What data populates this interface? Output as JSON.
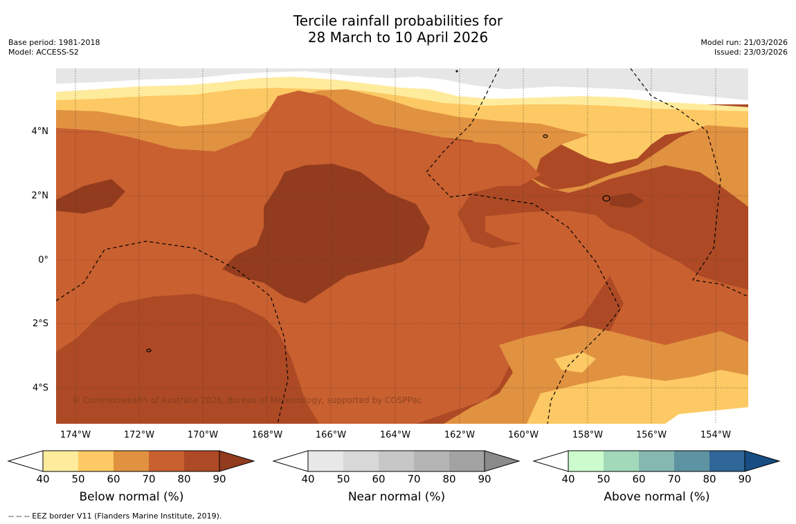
{
  "title": {
    "line1": "Tercile rainfall probabilities for",
    "line2": "28 March to 10 April 2026"
  },
  "meta_left": {
    "base_period": "Base period: 1981-2018",
    "model": "Model: ACCESS-S2"
  },
  "meta_right": {
    "model_run": "Model run: 21/03/2026",
    "issued": "Issued: 23/03/2026"
  },
  "map": {
    "y_labels": [
      "4°N",
      "2°N",
      "0°",
      "2°S",
      "4°S"
    ],
    "x_labels": [
      "174°W",
      "172°W",
      "170°W",
      "168°W",
      "166°W",
      "164°W",
      "162°W",
      "160°W",
      "158°W",
      "156°W",
      "154°W"
    ],
    "credit": "© Commonwealth of Australia 2026, Bureau of Meteorology, supported by COSPPac"
  },
  "colorbars": [
    {
      "title": "Below normal (%)",
      "ticks": [
        "40",
        "50",
        "60",
        "70",
        "80",
        "90"
      ],
      "colors": [
        "#ffeb9c",
        "#fdc964",
        "#e19241",
        "#c96030",
        "#ad4a25",
        "#923b1e"
      ]
    },
    {
      "title": "Near normal (%)",
      "ticks": [
        "40",
        "50",
        "60",
        "70",
        "80",
        "90"
      ],
      "colors": [
        "#e8e8e8",
        "#d8d8d8",
        "#c7c7c7",
        "#b5b5b5",
        "#a2a2a2",
        "#8a8a8a"
      ]
    },
    {
      "title": "Above normal (%)",
      "ticks": [
        "40",
        "50",
        "60",
        "70",
        "80",
        "90"
      ],
      "colors": [
        "#ccfcce",
        "#a2d9bb",
        "#84b8b1",
        "#5e93a1",
        "#306698",
        "#174d82"
      ]
    }
  ],
  "footer": "--  --  -- EEZ border V11 (Flanders Marine Institute, 2019)."
}
